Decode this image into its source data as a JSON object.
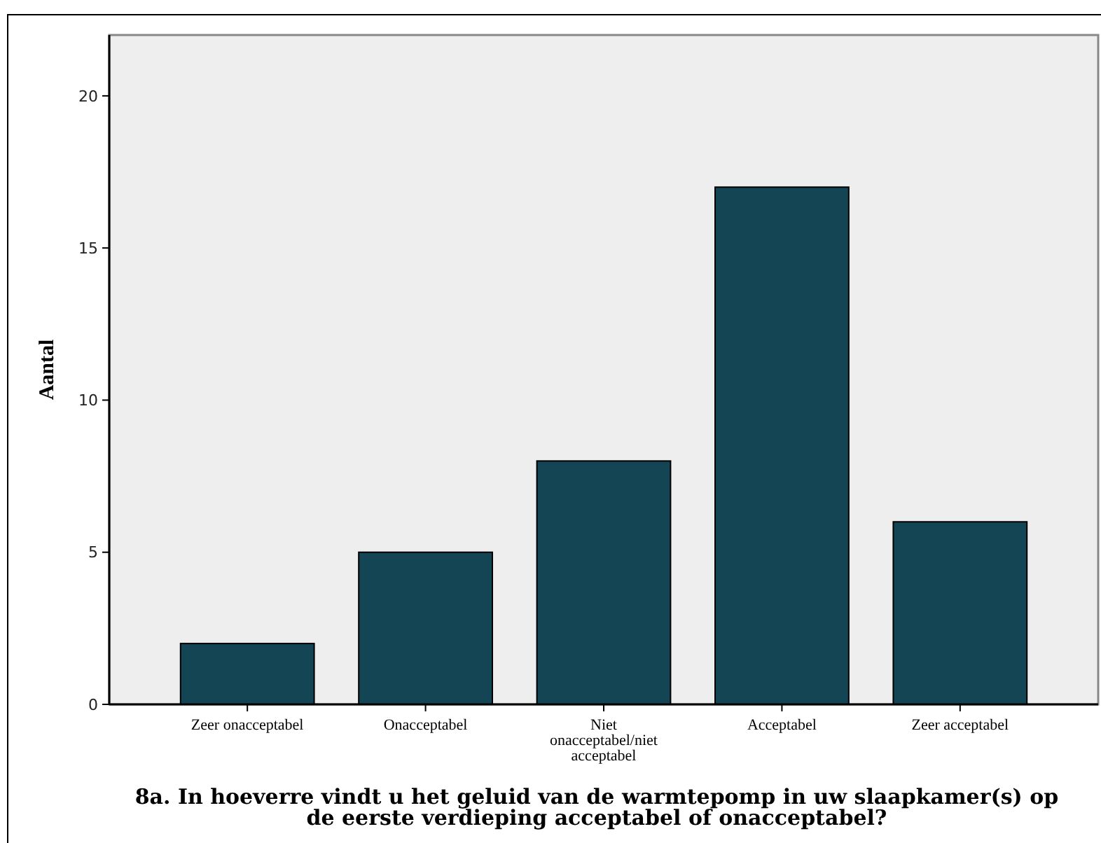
{
  "chart_data": {
    "type": "bar",
    "xlabel": "8a. In hoeverre vindt u het geluid van de warmtepomp in uw slaapkamer(s) op de eerste verdieping acceptabel of onacceptabel?",
    "ylabel": "Aantal",
    "categories": [
      "Zeer onacceptabel",
      "Onacceptabel",
      "Niet onacceptabel/niet acceptabel",
      "Acceptabel",
      "Zeer acceptabel"
    ],
    "values": [
      2,
      5,
      8,
      17,
      6
    ],
    "color": "#134555",
    "ylim": [
      0,
      22
    ],
    "yticks": [
      0,
      5,
      10,
      15,
      20
    ],
    "grid": false
  }
}
